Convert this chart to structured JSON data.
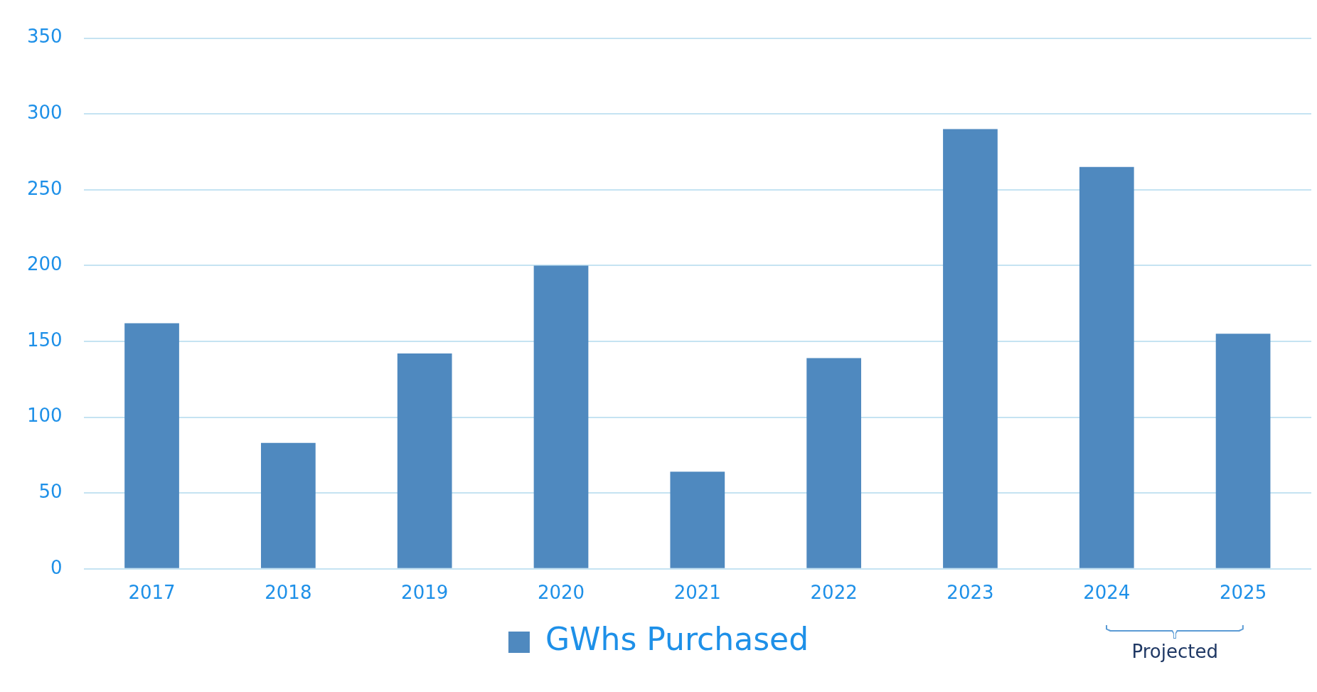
{
  "chart_data": {
    "type": "bar",
    "categories": [
      "2017",
      "2018",
      "2019",
      "2020",
      "2021",
      "2022",
      "2023",
      "2024",
      "2025"
    ],
    "series": [
      {
        "name": "GWhs Purchased",
        "color": "#4f89bf",
        "values": [
          162,
          83,
          142,
          200,
          64,
          139,
          290,
          265,
          155
        ]
      }
    ],
    "ylim": [
      0,
      350
    ],
    "yticks": [
      0,
      50,
      100,
      150,
      200,
      250,
      300,
      350
    ],
    "grid": "y",
    "legend": "bottom",
    "annotations": [
      "Projected"
    ]
  }
}
